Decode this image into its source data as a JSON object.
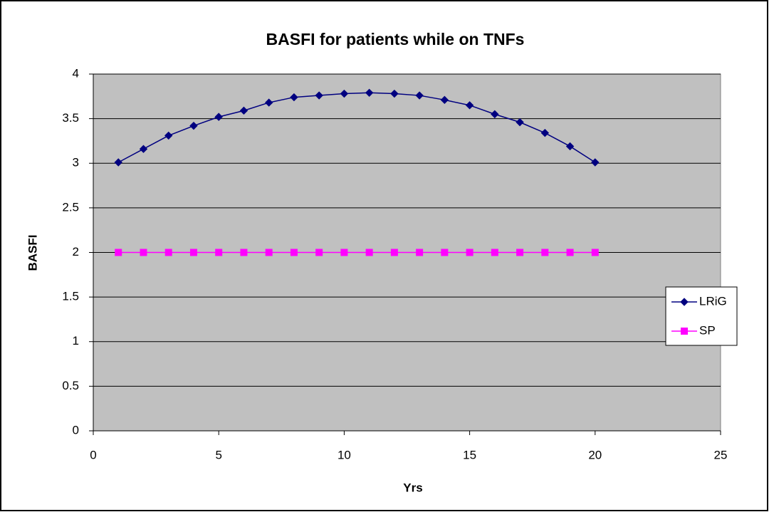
{
  "chart_data": {
    "type": "line",
    "title": "BASFI for patients while on TNFs",
    "x_label": "Yrs",
    "y_label": "BASFI",
    "x": [
      1,
      2,
      3,
      4,
      5,
      6,
      7,
      8,
      9,
      10,
      11,
      12,
      13,
      14,
      15,
      16,
      17,
      18,
      19,
      20
    ],
    "series": [
      {
        "name": "LRiG",
        "color": "#000080",
        "marker": "diamond",
        "values": [
          3.01,
          3.16,
          3.31,
          3.42,
          3.52,
          3.59,
          3.68,
          3.74,
          3.76,
          3.78,
          3.79,
          3.78,
          3.76,
          3.71,
          3.65,
          3.55,
          3.46,
          3.34,
          3.19,
          3.01
        ]
      },
      {
        "name": "SP",
        "color": "#ff00ff",
        "marker": "square",
        "values": [
          2,
          2,
          2,
          2,
          2,
          2,
          2,
          2,
          2,
          2,
          2,
          2,
          2,
          2,
          2,
          2,
          2,
          2,
          2,
          2
        ]
      }
    ],
    "xlim": [
      0,
      25
    ],
    "xticks": [
      0,
      5,
      10,
      15,
      20,
      25
    ],
    "ylim": [
      0,
      4
    ],
    "yticks": [
      0,
      0.5,
      1,
      1.5,
      2,
      2.5,
      3,
      3.5,
      4
    ],
    "grid": true,
    "legend": "right",
    "plot_background": "#c0c0c0"
  }
}
